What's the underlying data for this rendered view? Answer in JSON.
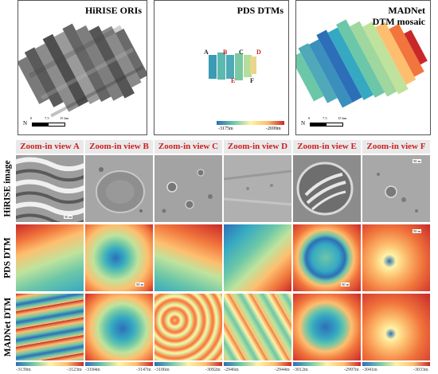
{
  "panels": [
    {
      "title_lines": [
        "HiRISE ORIs"
      ],
      "scale": {
        "ticks": [
          "0",
          "7.5",
          "15 km"
        ],
        "north": "N"
      }
    },
    {
      "title_lines": [
        "PDS DTMs"
      ],
      "site_labels": [
        "A",
        "B",
        "C",
        "D",
        "E",
        "F"
      ],
      "colorbar": {
        "min": "-3175m",
        "max": "-2699m"
      }
    },
    {
      "title_lines": [
        "MADNet",
        "DTM mosaic"
      ],
      "scale": {
        "ticks": [
          "0",
          "7.5",
          "15 km"
        ],
        "north": "N"
      }
    }
  ],
  "columns": [
    "Zoom-in view A",
    "Zoom-in view B",
    "Zoom-in view C",
    "Zoom-in view D",
    "Zoom-in view E",
    "Zoom-in view F"
  ],
  "rows": [
    "HiRISE image",
    "PDS DTM",
    "MADNet DTM"
  ],
  "cell_scale_label": "50 m",
  "colorbars": [
    {
      "min": "-3139m",
      "max": "-3123m"
    },
    {
      "min": "-3184m",
      "max": "-3147m"
    },
    {
      "min": "-3106m",
      "max": "-3092m"
    },
    {
      "min": "-2946m",
      "max": "-2944m"
    },
    {
      "min": "-3012m",
      "max": "-2997m"
    },
    {
      "min": "-3041m",
      "max": "-3033m"
    }
  ],
  "colors": {
    "header_text": "#cc1f1f",
    "header_bg": "#e9e9e9",
    "frame": "#555555"
  },
  "colormap": [
    "#2c6fb8",
    "#36a9c2",
    "#6cc7a8",
    "#bfe39c",
    "#fff3a6",
    "#fdbf6f",
    "#f1753c",
    "#c9282a"
  ]
}
